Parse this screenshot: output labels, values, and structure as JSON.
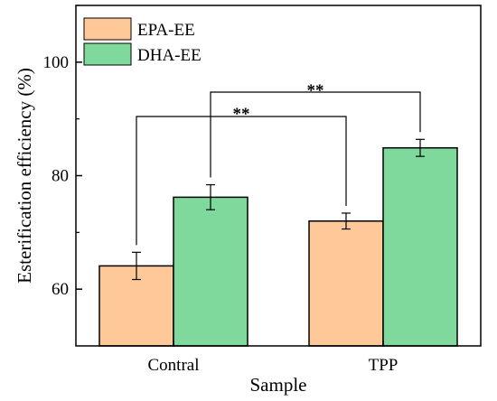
{
  "chart_data": {
    "type": "bar",
    "categories": [
      "Contral",
      "TPP"
    ],
    "series": [
      {
        "name": "EPA-EE",
        "values": [
          64.1,
          72.0
        ],
        "errors": [
          2.4,
          1.4
        ],
        "color": "#ffc898"
      },
      {
        "name": "DHA-EE",
        "values": [
          76.2,
          84.9
        ],
        "errors": [
          2.2,
          1.5
        ],
        "color": "#7fd99c"
      }
    ],
    "xlabel": "Sample",
    "ylabel": "Esterification efficiency (%)",
    "ylim": [
      50,
      110
    ],
    "yticks": [
      60,
      80,
      100
    ],
    "yticklabels": [
      "60",
      "80",
      "100"
    ],
    "legend_position": "top-left",
    "grid": false,
    "significance": [
      {
        "series": "EPA-EE",
        "label": "**"
      },
      {
        "series": "DHA-EE",
        "label": "**"
      }
    ]
  }
}
